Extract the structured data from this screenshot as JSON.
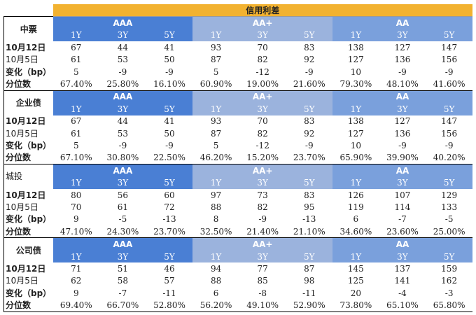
{
  "title": "信用利差",
  "groups": [
    "AAA",
    "AA+",
    "AA"
  ],
  "tenors": [
    "1Y",
    "3Y",
    "5Y"
  ],
  "sections": [
    {
      "name": "中票",
      "rows": [
        {
          "label": "10月12日",
          "style": "bold",
          "values": [
            "67",
            "44",
            "41",
            "93",
            "70",
            "83",
            "138",
            "127",
            "147"
          ]
        },
        {
          "label": "10月5日",
          "style": "small",
          "values": [
            "61",
            "53",
            "50",
            "87",
            "82",
            "92",
            "127",
            "136",
            "156"
          ]
        },
        {
          "label": "变化（bp）",
          "style": "bold",
          "values": [
            "5",
            "-9",
            "-9",
            "5",
            "-12",
            "-9",
            "10",
            "-9",
            "-9"
          ]
        },
        {
          "label": "分位数",
          "style": "bold",
          "values": [
            "67.40%",
            "25.80%",
            "16.10%",
            "60.90%",
            "19.00%",
            "21.60%",
            "79.30%",
            "48.10%",
            "41.60%"
          ]
        }
      ]
    },
    {
      "name": "企业债",
      "rows": [
        {
          "label": "10月12日",
          "style": "bold",
          "values": [
            "67",
            "44",
            "41",
            "93",
            "70",
            "83",
            "138",
            "127",
            "147"
          ]
        },
        {
          "label": "10月5日",
          "style": "small",
          "values": [
            "61",
            "53",
            "50",
            "87",
            "82",
            "92",
            "127",
            "136",
            "156"
          ]
        },
        {
          "label": "变化（bp）",
          "style": "bold",
          "values": [
            "5",
            "-9",
            "-9",
            "5",
            "-12",
            "-9",
            "10",
            "-9",
            "-9"
          ]
        },
        {
          "label": "分位数",
          "style": "bold",
          "values": [
            "67.10%",
            "30.80%",
            "22.50%",
            "46.20%",
            "15.20%",
            "23.70%",
            "65.90%",
            "39.90%",
            "40.20%"
          ]
        }
      ]
    },
    {
      "name": "城投",
      "rows": [
        {
          "label": "10月12日",
          "style": "bold",
          "values": [
            "80",
            "56",
            "60",
            "97",
            "73",
            "83",
            "126",
            "107",
            "129"
          ]
        },
        {
          "label": "10月5日",
          "style": "small",
          "values": [
            "70",
            "61",
            "72",
            "88",
            "82",
            "95",
            "119",
            "114",
            "133"
          ]
        },
        {
          "label": "变化（bp）",
          "style": "bold",
          "values": [
            "9",
            "-5",
            "-13",
            "8",
            "-9",
            "-13",
            "6",
            "-7",
            "-5"
          ]
        },
        {
          "label": "分位数",
          "style": "bold",
          "values": [
            "47.10%",
            "24.30%",
            "23.70%",
            "32.50%",
            "21.40%",
            "21.10%",
            "34.60%",
            "23.60%",
            "25.00%"
          ]
        }
      ]
    },
    {
      "name": "公司债",
      "rows": [
        {
          "label": "10月12日",
          "style": "bold",
          "values": [
            "71",
            "51",
            "46",
            "94",
            "77",
            "87",
            "145",
            "137",
            "159"
          ]
        },
        {
          "label": "10月5日",
          "style": "small",
          "values": [
            "62",
            "58",
            "57",
            "88",
            "85",
            "98",
            "125",
            "141",
            "162"
          ]
        },
        {
          "label": "变化（bp）",
          "style": "bold",
          "values": [
            "9",
            "-7",
            "-11",
            "6",
            "-8",
            "-11",
            "20",
            "-4",
            "-3"
          ]
        },
        {
          "label": "分位数",
          "style": "bold",
          "values": [
            "69.40%",
            "66.70%",
            "52.80%",
            "56.20%",
            "49.10%",
            "52.90%",
            "73.80%",
            "65.10%",
            "65.80%"
          ]
        }
      ]
    }
  ],
  "colors": {
    "banner": "#f2b230",
    "aaa": "#4a7fd4",
    "aaplus": "#9bb3dd",
    "aa": "#7aa0dc"
  }
}
